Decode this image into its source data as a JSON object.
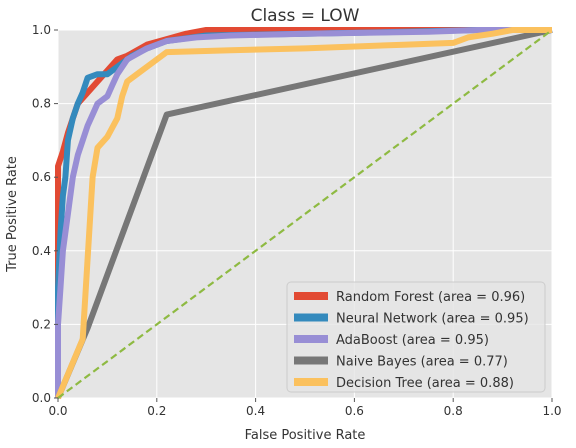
{
  "chart_data": {
    "type": "line",
    "title": "Class = LOW",
    "xlabel": "False Positive Rate",
    "ylabel": "True Positive Rate",
    "xlim": [
      0,
      1
    ],
    "ylim": [
      0,
      1
    ],
    "x_ticks": [
      "0.0",
      "0.2",
      "0.4",
      "0.6",
      "0.8",
      "1.0"
    ],
    "y_ticks": [
      "0.0",
      "0.2",
      "0.4",
      "0.6",
      "0.8",
      "1.0"
    ],
    "grid": true,
    "legend_position": "bottom-right",
    "series": [
      {
        "name": "Random Forest (area = 0.96)",
        "color": "#E24A33",
        "points": [
          [
            0,
            0
          ],
          [
            0,
            0.63
          ],
          [
            0.01,
            0.67
          ],
          [
            0.02,
            0.72
          ],
          [
            0.04,
            0.8
          ],
          [
            0.06,
            0.83
          ],
          [
            0.08,
            0.86
          ],
          [
            0.1,
            0.89
          ],
          [
            0.12,
            0.92
          ],
          [
            0.14,
            0.93
          ],
          [
            0.18,
            0.96
          ],
          [
            0.22,
            0.975
          ],
          [
            0.26,
            0.99
          ],
          [
            0.3,
            1.0
          ],
          [
            1,
            1
          ]
        ]
      },
      {
        "name": "Neural Network (area = 0.95)",
        "color": "#348ABD",
        "points": [
          [
            0,
            0
          ],
          [
            0,
            0.3
          ],
          [
            0.005,
            0.45
          ],
          [
            0.01,
            0.55
          ],
          [
            0.015,
            0.6
          ],
          [
            0.02,
            0.7
          ],
          [
            0.03,
            0.76
          ],
          [
            0.04,
            0.8
          ],
          [
            0.05,
            0.83
          ],
          [
            0.06,
            0.87
          ],
          [
            0.08,
            0.88
          ],
          [
            0.1,
            0.88
          ],
          [
            0.12,
            0.9
          ],
          [
            0.15,
            0.93
          ],
          [
            0.18,
            0.95
          ],
          [
            0.22,
            0.97
          ],
          [
            0.3,
            0.985
          ],
          [
            0.5,
            0.99
          ],
          [
            0.7,
            0.995
          ],
          [
            0.85,
            1.0
          ],
          [
            1,
            1
          ]
        ]
      },
      {
        "name": "AdaBoost (area = 0.95)",
        "color": "#988ED5",
        "points": [
          [
            0,
            0
          ],
          [
            0,
            0.2
          ],
          [
            0.005,
            0.3
          ],
          [
            0.01,
            0.4
          ],
          [
            0.02,
            0.5
          ],
          [
            0.03,
            0.6
          ],
          [
            0.04,
            0.66
          ],
          [
            0.05,
            0.7
          ],
          [
            0.06,
            0.74
          ],
          [
            0.07,
            0.77
          ],
          [
            0.08,
            0.8
          ],
          [
            0.1,
            0.82
          ],
          [
            0.11,
            0.85
          ],
          [
            0.12,
            0.88
          ],
          [
            0.14,
            0.92
          ],
          [
            0.18,
            0.95
          ],
          [
            0.22,
            0.97
          ],
          [
            0.28,
            0.98
          ],
          [
            0.35,
            0.985
          ],
          [
            0.5,
            0.99
          ],
          [
            0.75,
            0.995
          ],
          [
            0.85,
            1.0
          ],
          [
            1,
            1
          ]
        ]
      },
      {
        "name": "Naive Bayes (area = 0.77)",
        "color": "#777777",
        "points": [
          [
            0,
            0
          ],
          [
            0.06,
            0.19
          ],
          [
            0.22,
            0.77
          ],
          [
            1,
            1
          ]
        ]
      },
      {
        "name": "Decision Tree (area = 0.88)",
        "color": "#FBC15E",
        "points": [
          [
            0,
            0
          ],
          [
            0.05,
            0.16
          ],
          [
            0.07,
            0.6
          ],
          [
            0.08,
            0.68
          ],
          [
            0.1,
            0.71
          ],
          [
            0.12,
            0.76
          ],
          [
            0.13,
            0.82
          ],
          [
            0.14,
            0.86
          ],
          [
            0.16,
            0.88
          ],
          [
            0.19,
            0.91
          ],
          [
            0.22,
            0.94
          ],
          [
            0.35,
            0.945
          ],
          [
            0.5,
            0.95
          ],
          [
            0.7,
            0.96
          ],
          [
            0.8,
            0.965
          ],
          [
            0.83,
            0.98
          ],
          [
            0.88,
            0.99
          ],
          [
            0.92,
            1.0
          ],
          [
            1,
            1
          ]
        ]
      },
      {
        "name": "Chance",
        "color": "#8EBA42",
        "dashed": true,
        "points": [
          [
            0,
            0
          ],
          [
            1,
            1
          ]
        ]
      }
    ]
  }
}
